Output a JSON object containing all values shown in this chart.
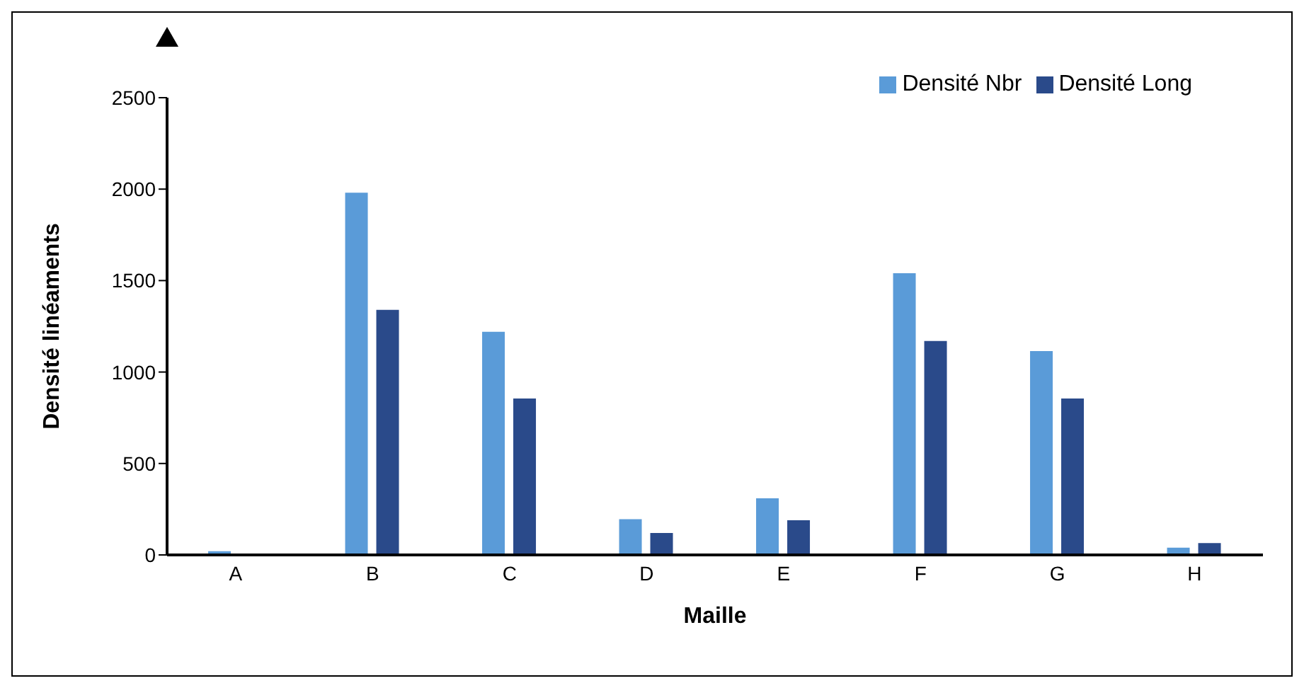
{
  "chart_data": {
    "type": "bar",
    "xlabel": "Maille",
    "ylabel": "Densité linéaments",
    "categories": [
      "A",
      "B",
      "C",
      "D",
      "E",
      "F",
      "G",
      "H"
    ],
    "series": [
      {
        "name": "Densité Nbr",
        "color": "#5a9bd8",
        "values": [
          20,
          1980,
          1220,
          195,
          310,
          1540,
          1115,
          40
        ]
      },
      {
        "name": "Densité Long",
        "color": "#2a4a8a",
        "values": [
          null,
          1340,
          855,
          120,
          190,
          1170,
          855,
          65
        ]
      }
    ],
    "ylim": [
      0,
      2500
    ],
    "yticks": [
      0,
      500,
      1000,
      1500,
      2000,
      2500
    ],
    "grid": false,
    "legend": "top right"
  }
}
